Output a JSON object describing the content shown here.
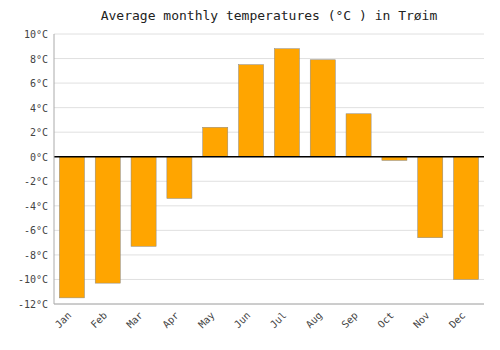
{
  "chart_data": {
    "type": "bar",
    "title": "Average monthly temperatures (°C ) in Trøim",
    "categories": [
      "Jan",
      "Feb",
      "Mar",
      "Apr",
      "May",
      "Jun",
      "Jul",
      "Aug",
      "Sep",
      "Oct",
      "Nov",
      "Dec"
    ],
    "values": [
      -11.5,
      -10.3,
      -7.3,
      -3.4,
      2.4,
      7.5,
      8.8,
      7.9,
      3.5,
      -0.3,
      -6.6,
      -10.0
    ],
    "color": "#FFA500",
    "ylim": [
      -12,
      10
    ],
    "yticks": [
      {
        "value": -12,
        "label": "-12°C"
      },
      {
        "value": -10,
        "label": "-10°C"
      },
      {
        "value": -8,
        "label": "-8°C"
      },
      {
        "value": -6,
        "label": "-6°C"
      },
      {
        "value": -4,
        "label": "-4°C"
      },
      {
        "value": -2,
        "label": "-2°C"
      },
      {
        "value": 0,
        "label": "0°C"
      },
      {
        "value": 2,
        "label": "2°C"
      },
      {
        "value": 4,
        "label": "4°C"
      },
      {
        "value": 6,
        "label": "6°C"
      },
      {
        "value": 8,
        "label": "8°C"
      },
      {
        "value": 10,
        "label": "10°C"
      }
    ],
    "grid": true
  }
}
